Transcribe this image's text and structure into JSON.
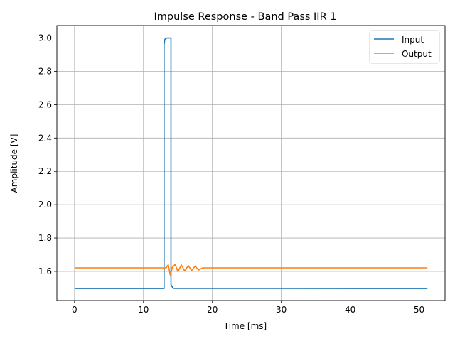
{
  "chart_data": {
    "type": "line",
    "title": "Impulse Response - Band Pass IIR 1",
    "xlabel": "Time [ms]",
    "ylabel": "Amplitude [V]",
    "xlim": [
      -2.56,
      53.76
    ],
    "ylim": [
      1.425,
      3.075
    ],
    "xticks": [
      0,
      10,
      20,
      30,
      40,
      50
    ],
    "yticks": [
      1.6,
      1.8,
      2.0,
      2.2,
      2.4,
      2.6,
      2.8,
      3.0
    ],
    "grid": true,
    "legend_position": "top-right",
    "series": [
      {
        "name": "Input",
        "color": "#1f77b4",
        "x": [
          0,
          13.0,
          13.0,
          13.1,
          13.2,
          13.4,
          14.0,
          14.0,
          14.2,
          14.4,
          51.2
        ],
        "y": [
          1.497,
          1.497,
          2.96,
          2.99,
          2.997,
          3.0,
          3.0,
          1.52,
          1.505,
          1.498,
          1.497
        ]
      },
      {
        "name": "Output",
        "color": "#ff7f0e",
        "x": [
          0,
          13.3,
          13.6,
          13.9,
          14.2,
          14.6,
          15.0,
          15.5,
          16.0,
          16.5,
          17.0,
          17.5,
          18.0,
          18.6,
          51.2
        ],
        "y": [
          1.621,
          1.621,
          1.64,
          1.575,
          1.625,
          1.642,
          1.598,
          1.638,
          1.602,
          1.635,
          1.605,
          1.632,
          1.608,
          1.621,
          1.621
        ]
      }
    ]
  },
  "legend": {
    "input_label": "Input",
    "output_label": "Output"
  }
}
